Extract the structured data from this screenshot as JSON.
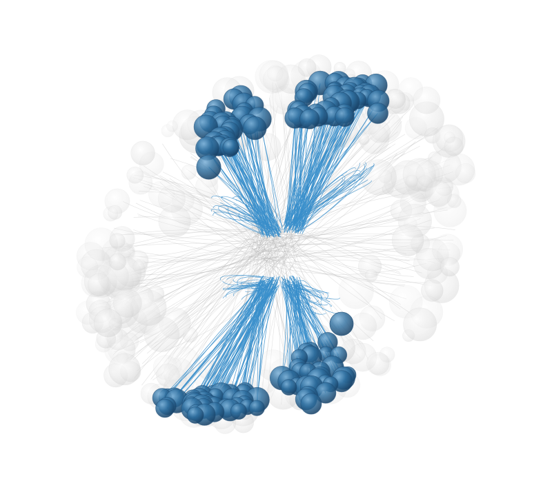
{
  "scene": {
    "subject": "microtubule-spindle-render",
    "colors": {
      "background": "#ffffff",
      "highlight_sphere": "#2f6f9f",
      "highlight_sphere_dark": "#1f4f78",
      "highlight_fiber": "#3a8fcb",
      "context_sphere": "#d9d9d9",
      "context_fiber": "#bdbdbd"
    },
    "clusters": [
      {
        "name": "upper-left-cluster"
      },
      {
        "name": "upper-right-cluster"
      },
      {
        "name": "lower-left-cluster"
      },
      {
        "name": "lower-right-cluster"
      }
    ]
  }
}
